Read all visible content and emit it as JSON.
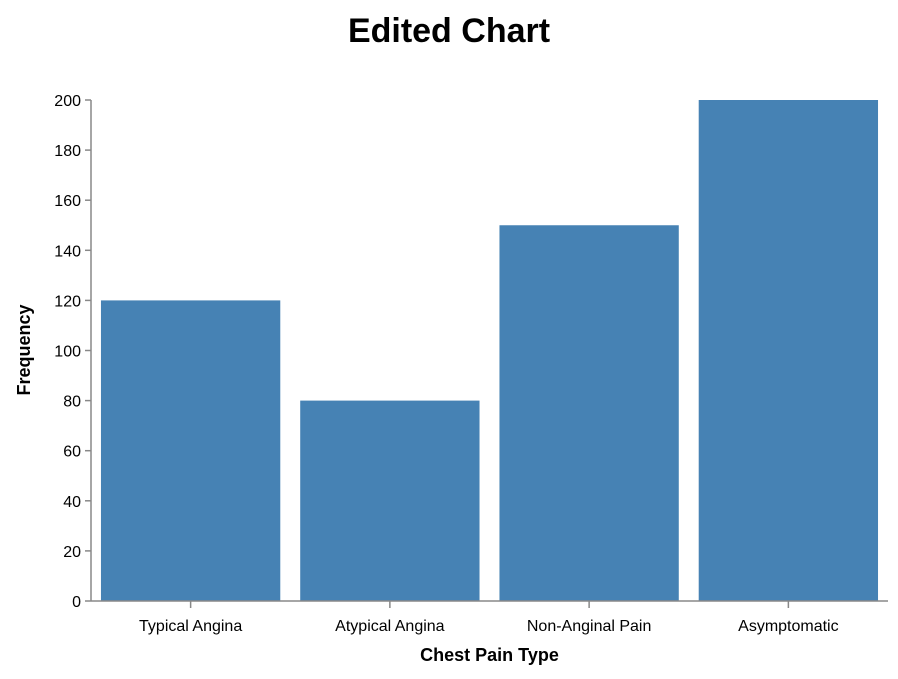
{
  "chart_data": {
    "type": "bar",
    "title": "Edited Chart",
    "xlabel": "Chest Pain Type",
    "ylabel": "Frequency",
    "categories": [
      "Typical Angina",
      "Atypical Angina",
      "Non-Anginal Pain",
      "Asymptomatic"
    ],
    "values": [
      120,
      80,
      150,
      200
    ],
    "ylim": [
      0,
      200
    ],
    "yticks": [
      0,
      20,
      40,
      60,
      80,
      100,
      120,
      140,
      160,
      180,
      200
    ],
    "grid": false,
    "bar_color": "#4682b4",
    "axis_color": "#888888"
  }
}
